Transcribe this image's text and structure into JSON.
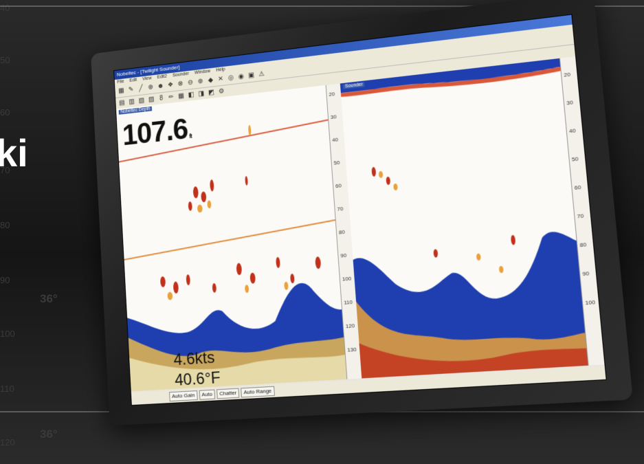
{
  "background": {
    "depth_labels": [
      "40",
      "50",
      "60",
      "70",
      "80",
      "90",
      "100",
      "110",
      "120"
    ],
    "brand_fragment": "ki",
    "temp_labels": [
      "36°",
      "36°"
    ]
  },
  "window": {
    "title": "Nobeltec - [Twilight Sounder]",
    "menu": [
      "File",
      "Edit",
      "View",
      "Edit2",
      "Sounder",
      "Window",
      "Help"
    ]
  },
  "left_panel": {
    "header": "Nobeltec Depth",
    "depth_value": "107.6",
    "depth_unit": "ft",
    "speed": "4.6kts",
    "water_temp": "40.6°F",
    "scale_ticks": [
      "20",
      "30",
      "40",
      "50",
      "60",
      "70",
      "80",
      "90",
      "100",
      "110",
      "120",
      "130"
    ]
  },
  "right_panel": {
    "header": "Sounder",
    "scale_ticks": [
      "20",
      "30",
      "40",
      "50",
      "60",
      "70",
      "80",
      "90",
      "100"
    ]
  },
  "statusbar": {
    "buttons": [
      "Auto Gain",
      "Auto",
      "Chatter",
      "Auto Range"
    ]
  },
  "colors": {
    "seabed_blue": "#1f3fb0",
    "target_red": "#c0301a",
    "target_orange": "#e9a13a",
    "line_red": "#d9583a",
    "water": "#fbfaf6"
  }
}
